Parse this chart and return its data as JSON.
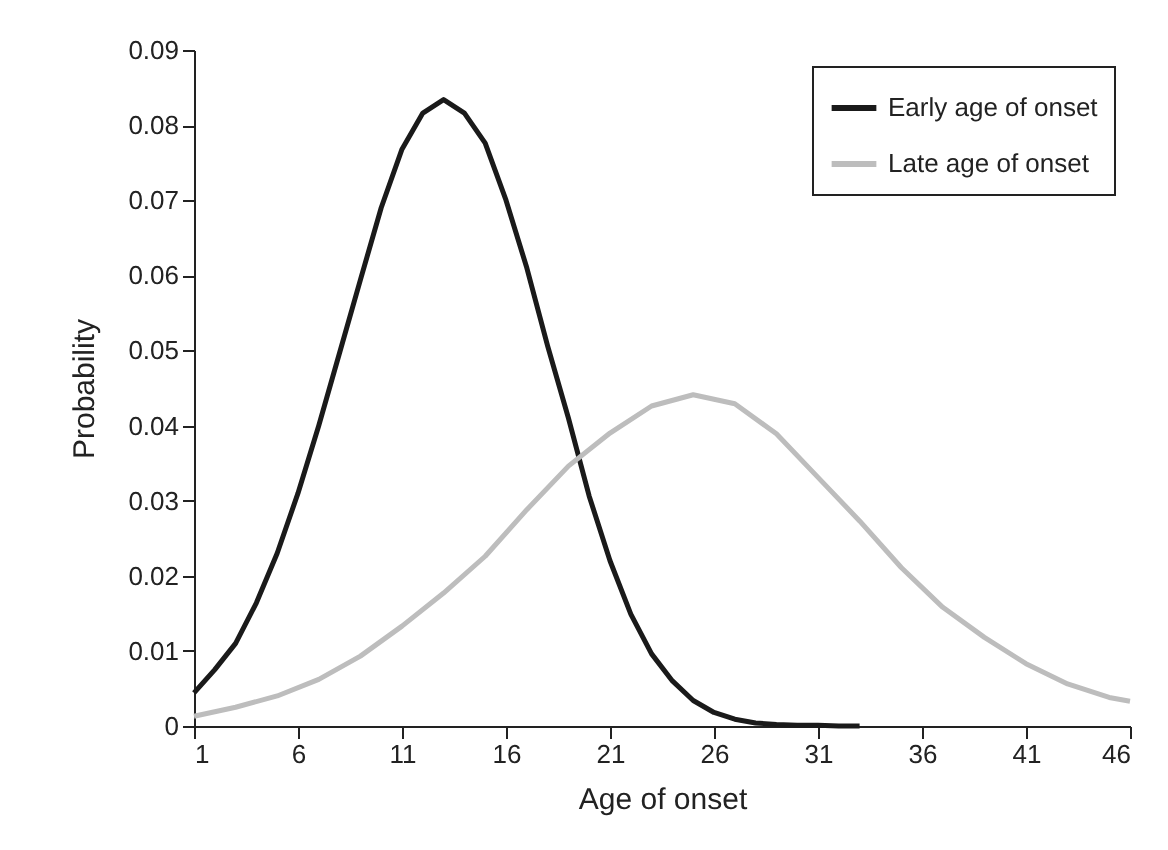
{
  "chart_data": {
    "type": "line",
    "xlabel": "Age of onset",
    "ylabel": "Probability",
    "xlim": [
      1,
      46
    ],
    "xticks": [
      1,
      6,
      11,
      16,
      21,
      26,
      31,
      36,
      41,
      46
    ],
    "ylim": [
      0,
      0.09
    ],
    "yticks": [
      0,
      0.01,
      0.02,
      0.03,
      0.04,
      0.05,
      0.06,
      0.07,
      0.08,
      0.09
    ],
    "grid": false,
    "legend": "top right",
    "marker": "none",
    "line_style": "solid",
    "series": [
      {
        "name": "Early age of onset",
        "color": "#1a1a1a",
        "x": [
          1,
          2,
          3,
          4,
          5,
          6,
          7,
          8,
          9,
          10,
          11,
          12,
          13,
          14,
          15,
          16,
          17,
          18,
          19,
          20,
          21,
          22,
          23,
          24,
          25,
          26,
          27,
          28,
          29,
          30,
          31,
          32,
          33
        ],
        "values": [
          0.0044,
          0.0075,
          0.011,
          0.0164,
          0.023,
          0.031,
          0.04,
          0.0497,
          0.0594,
          0.069,
          0.0768,
          0.0816,
          0.0834,
          0.0816,
          0.0776,
          0.07,
          0.061,
          0.0506,
          0.041,
          0.0306,
          0.022,
          0.0149,
          0.0096,
          0.006,
          0.0034,
          0.0018,
          0.0009,
          0.0004,
          0.0002,
          0.0001,
          0.0001,
          0,
          0
        ]
      },
      {
        "name": "Late age of onset",
        "color": "#bdbdbd",
        "x": [
          1,
          3,
          5,
          7,
          9,
          11,
          13,
          15,
          17,
          19,
          21,
          23,
          25,
          27,
          29,
          31,
          33,
          35,
          37,
          39,
          41,
          43,
          45,
          46
        ],
        "values": [
          0.0013,
          0.0025,
          0.004,
          0.0062,
          0.0093,
          0.0133,
          0.0177,
          0.0226,
          0.0288,
          0.0346,
          0.039,
          0.0426,
          0.0441,
          0.0429,
          0.0389,
          0.0331,
          0.0273,
          0.0211,
          0.0158,
          0.0118,
          0.0083,
          0.0056,
          0.0038,
          0.0033
        ]
      }
    ]
  }
}
